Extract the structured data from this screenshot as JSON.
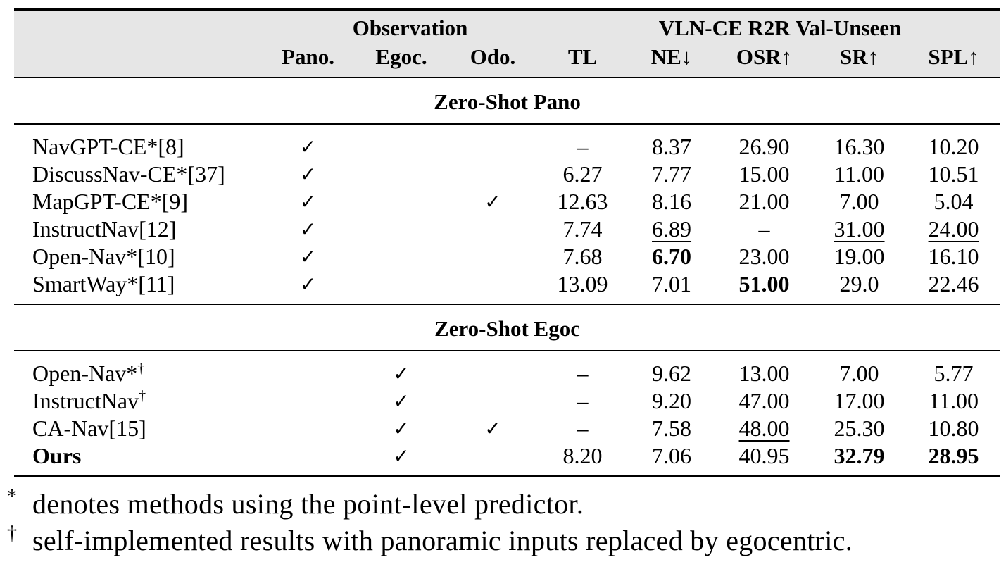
{
  "header": {
    "observation": "Observation",
    "benchmark": "VLN-CE R2R Val-Unseen",
    "cols": [
      "Pano.",
      "Egoc.",
      "Odo.",
      "TL",
      "NE↓",
      "OSR↑",
      "SR↑",
      "SPL↑"
    ]
  },
  "check_glyph": "✓",
  "sections": [
    {
      "title": "Zero-Shot Pano",
      "rows": [
        {
          "method": "NavGPT-CE*[8]",
          "dagger": "",
          "pano": "✓",
          "egoc": "",
          "odo": "",
          "tl": "–",
          "ne": "8.37",
          "osr": "26.90",
          "sr": "16.30",
          "spl": "10.20"
        },
        {
          "method": "DiscussNav-CE*[37]",
          "dagger": "",
          "pano": "✓",
          "egoc": "",
          "odo": "",
          "tl": "6.27",
          "ne": "7.77",
          "osr": "15.00",
          "sr": "11.00",
          "spl": "10.51"
        },
        {
          "method": "MapGPT-CE*[9]",
          "dagger": "",
          "pano": "✓",
          "egoc": "",
          "odo": "✓",
          "tl": "12.63",
          "ne": "8.16",
          "osr": "21.00",
          "sr": "7.00",
          "spl": "5.04"
        },
        {
          "method": "InstructNav[12]",
          "dagger": "",
          "pano": "✓",
          "egoc": "",
          "odo": "",
          "tl": "7.74",
          "ne": "6.89",
          "osr": "–",
          "sr": "31.00",
          "spl": "24.00"
        },
        {
          "method": "Open-Nav*[10]",
          "dagger": "",
          "pano": "✓",
          "egoc": "",
          "odo": "",
          "tl": "7.68",
          "ne": "6.70",
          "osr": "23.00",
          "sr": "19.00",
          "spl": "16.10"
        },
        {
          "method": "SmartWay*[11]",
          "dagger": "",
          "pano": "✓",
          "egoc": "",
          "odo": "",
          "tl": "13.09",
          "ne": "7.01",
          "osr": "51.00",
          "sr": "29.0",
          "spl": "22.46"
        }
      ]
    },
    {
      "title": "Zero-Shot Egoc",
      "rows": [
        {
          "method": "Open-Nav*",
          "dagger": "†",
          "pano": "",
          "egoc": "✓",
          "odo": "",
          "tl": "–",
          "ne": "9.62",
          "osr": "13.00",
          "sr": "7.00",
          "spl": "5.77"
        },
        {
          "method": "InstructNav",
          "dagger": "†",
          "pano": "",
          "egoc": "✓",
          "odo": "",
          "tl": "–",
          "ne": "9.20",
          "osr": "47.00",
          "sr": "17.00",
          "spl": "11.00"
        },
        {
          "method": "CA-Nav[15]",
          "dagger": "",
          "pano": "",
          "egoc": "✓",
          "odo": "✓",
          "tl": "–",
          "ne": "7.58",
          "osr": "48.00",
          "sr": "25.30",
          "spl": "10.80"
        },
        {
          "method": "Ours",
          "dagger": "",
          "pano": "",
          "egoc": "✓",
          "odo": "",
          "tl": "8.20",
          "ne": "7.06",
          "osr": "40.95",
          "sr": "32.79",
          "spl": "28.95"
        }
      ]
    }
  ],
  "footnotes": [
    {
      "mark": "*",
      "text": "denotes methods using the point-level predictor."
    },
    {
      "mark": "†",
      "text": "self-implemented results with panoramic inputs replaced by egocentric."
    }
  ]
}
